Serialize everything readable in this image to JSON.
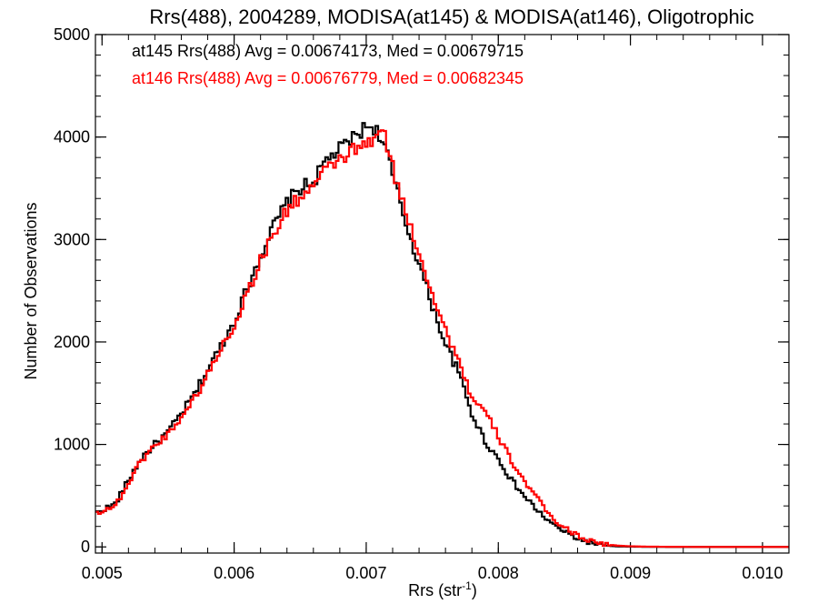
{
  "chart_data": {
    "type": "line",
    "step": true,
    "title": "Rrs(488), 2004289, MODISA(at145) & MODISA(at146), Oligotrophic",
    "xlabel": "Rrs (str",
    "xlabel_sup": "-1",
    "xlabel_close": ")",
    "ylabel": "Number of Observations",
    "xlim": [
      0.00495,
      0.0102
    ],
    "ylim": [
      -60,
      5000
    ],
    "x_ticks": [
      0.005,
      0.006,
      0.007,
      0.008,
      0.009,
      0.01
    ],
    "x_tick_labels": [
      "0.005",
      "0.006",
      "0.007",
      "0.008",
      "0.009",
      "0.010"
    ],
    "y_ticks": [
      0,
      1000,
      2000,
      3000,
      4000,
      5000
    ],
    "y_tick_labels": [
      "0",
      "1000",
      "2000",
      "3000",
      "4000",
      "5000"
    ],
    "grid": false,
    "annotations": [
      {
        "text": "at145 Rrs(488) Avg = 0.00674173, Med = 0.00679715",
        "color": "#000000"
      },
      {
        "text": "at146 Rrs(488) Avg = 0.00676779, Med = 0.00682345",
        "color": "#ff0000"
      }
    ],
    "series": [
      {
        "color": "#000000",
        "x": [
          0.00495,
          0.0051,
          0.0052,
          0.0053,
          0.0054,
          0.0055,
          0.0056,
          0.0057,
          0.0058,
          0.0059,
          0.006,
          0.0061,
          0.0062,
          0.0063,
          0.0064,
          0.0065,
          0.0066,
          0.0067,
          0.0068,
          0.0069,
          0.007,
          0.00705,
          0.0071,
          0.00715,
          0.0072,
          0.0073,
          0.0074,
          0.0075,
          0.0076,
          0.0077,
          0.0078,
          0.0079,
          0.008,
          0.0081,
          0.0082,
          0.0083,
          0.0084,
          0.0085,
          0.0086,
          0.0087,
          0.0088,
          0.0089,
          0.009,
          0.0091,
          0.0092,
          0.0093,
          0.0094,
          0.0095,
          0.0096,
          0.0098,
          0.01,
          0.0102
        ],
        "y": [
          330,
          420,
          650,
          870,
          1000,
          1120,
          1300,
          1490,
          1730,
          1960,
          2200,
          2530,
          2850,
          3130,
          3360,
          3500,
          3560,
          3780,
          3880,
          3990,
          4100,
          4110,
          4020,
          3880,
          3620,
          3160,
          2760,
          2360,
          1980,
          1700,
          1300,
          1030,
          860,
          650,
          490,
          350,
          230,
          150,
          80,
          40,
          15,
          5,
          3,
          1,
          1,
          0,
          0,
          0,
          0,
          0,
          0,
          0
        ]
      },
      {
        "color": "#ff0000",
        "x": [
          0.00495,
          0.0051,
          0.0052,
          0.0053,
          0.0054,
          0.0055,
          0.0056,
          0.0057,
          0.0058,
          0.0059,
          0.006,
          0.0061,
          0.0062,
          0.0063,
          0.0064,
          0.0065,
          0.0066,
          0.0067,
          0.0068,
          0.0069,
          0.007,
          0.00705,
          0.0071,
          0.00715,
          0.0072,
          0.0073,
          0.0074,
          0.0075,
          0.0076,
          0.0077,
          0.0078,
          0.0079,
          0.008,
          0.0081,
          0.0082,
          0.0083,
          0.0084,
          0.0085,
          0.0086,
          0.0087,
          0.0088,
          0.0089,
          0.009,
          0.0091,
          0.0092,
          0.0093,
          0.0094,
          0.0095,
          0.0096,
          0.0098,
          0.01,
          0.0102
        ],
        "y": [
          330,
          400,
          620,
          850,
          990,
          1100,
          1270,
          1450,
          1680,
          1940,
          2160,
          2480,
          2790,
          3060,
          3280,
          3420,
          3520,
          3680,
          3780,
          3870,
          3920,
          3970,
          4050,
          3980,
          3700,
          3260,
          2880,
          2480,
          2110,
          1830,
          1450,
          1310,
          1080,
          840,
          640,
          460,
          290,
          190,
          110,
          60,
          28,
          12,
          6,
          3,
          2,
          1,
          1,
          0,
          0,
          0,
          0,
          0
        ]
      }
    ]
  }
}
